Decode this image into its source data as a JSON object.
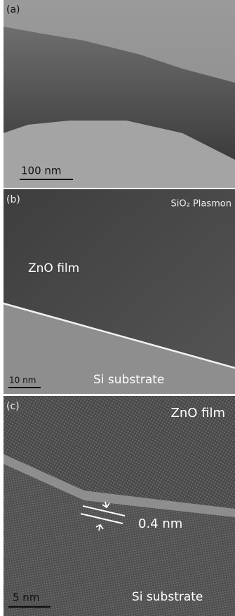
{
  "panels": [
    {
      "label": "(a)",
      "scale_bar": "100 nm"
    },
    {
      "label": "(b)",
      "annotations": [
        "SiO₂ Plasmon",
        "ZnO film",
        "Si substrate"
      ],
      "scale_bar": "10 nm"
    },
    {
      "label": "(c)",
      "annotations": [
        "ZnO film",
        "0.4 nm",
        "Si substrate"
      ],
      "scale_bar": "5 nm"
    }
  ]
}
